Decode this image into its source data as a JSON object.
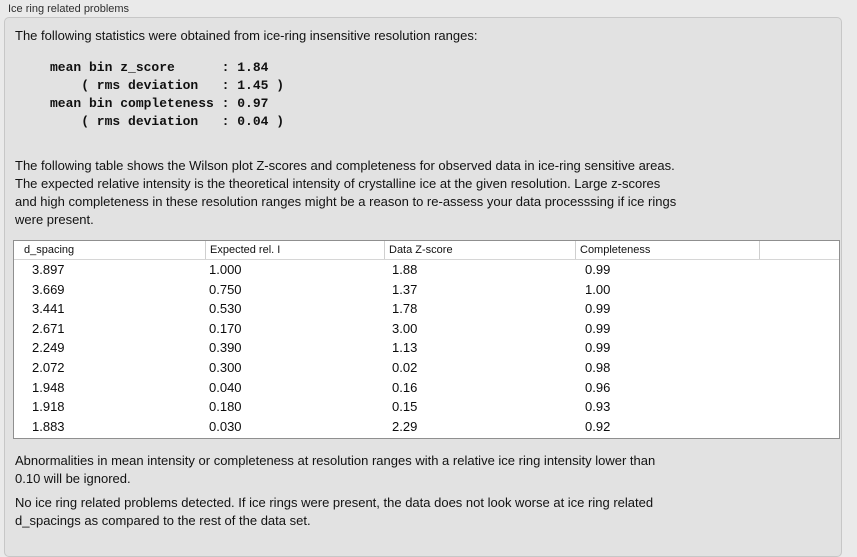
{
  "panel": {
    "title": "Ice ring related problems"
  },
  "intro_text": "The following statistics were obtained from ice-ring insensitive resolution ranges:",
  "stats_block": "mean bin z_score      : 1.84\n    ( rms deviation   : 1.45 )\nmean bin completeness : 0.97\n    ( rms deviation   : 0.04 )",
  "stats": {
    "mean_bin_z_score": "1.84",
    "z_score_rms_deviation": "1.45",
    "mean_bin_completeness": "0.97",
    "completeness_rms_deviation": "0.04"
  },
  "table_description": "The following table shows the Wilson plot Z-scores and completeness for observed data in ice-ring sensitive areas.\nThe expected relative intensity is the theoretical intensity of crystalline ice at the given resolution. Large z-scores\nand high completeness in these resolution ranges might be a reason to re-assess your data processsing if ice rings\nwere present.",
  "table": {
    "columns": [
      "d_spacing",
      "Expected rel. I",
      "Data Z-score",
      "Completeness"
    ],
    "rows": [
      [
        "3.897",
        "1.000",
        "1.88",
        "0.99"
      ],
      [
        "3.669",
        "0.750",
        "1.37",
        "1.00"
      ],
      [
        "3.441",
        "0.530",
        "1.78",
        "0.99"
      ],
      [
        "2.671",
        "0.170",
        "3.00",
        "0.99"
      ],
      [
        "2.249",
        "0.390",
        "1.13",
        "0.99"
      ],
      [
        "2.072",
        "0.300",
        "0.02",
        "0.98"
      ],
      [
        "1.948",
        "0.040",
        "0.16",
        "0.96"
      ],
      [
        "1.918",
        "0.180",
        "0.15",
        "0.93"
      ],
      [
        "1.883",
        "0.030",
        "2.29",
        "0.92"
      ]
    ]
  },
  "ignore_note": "Abnormalities in mean intensity or completeness at resolution ranges with a relative ice ring intensity lower than\n0.10 will be ignored.",
  "conclusion": "No ice ring related problems detected. If ice rings were present, the data does not look worse at ice ring related\nd_spacings as compared to the rest of the data set."
}
